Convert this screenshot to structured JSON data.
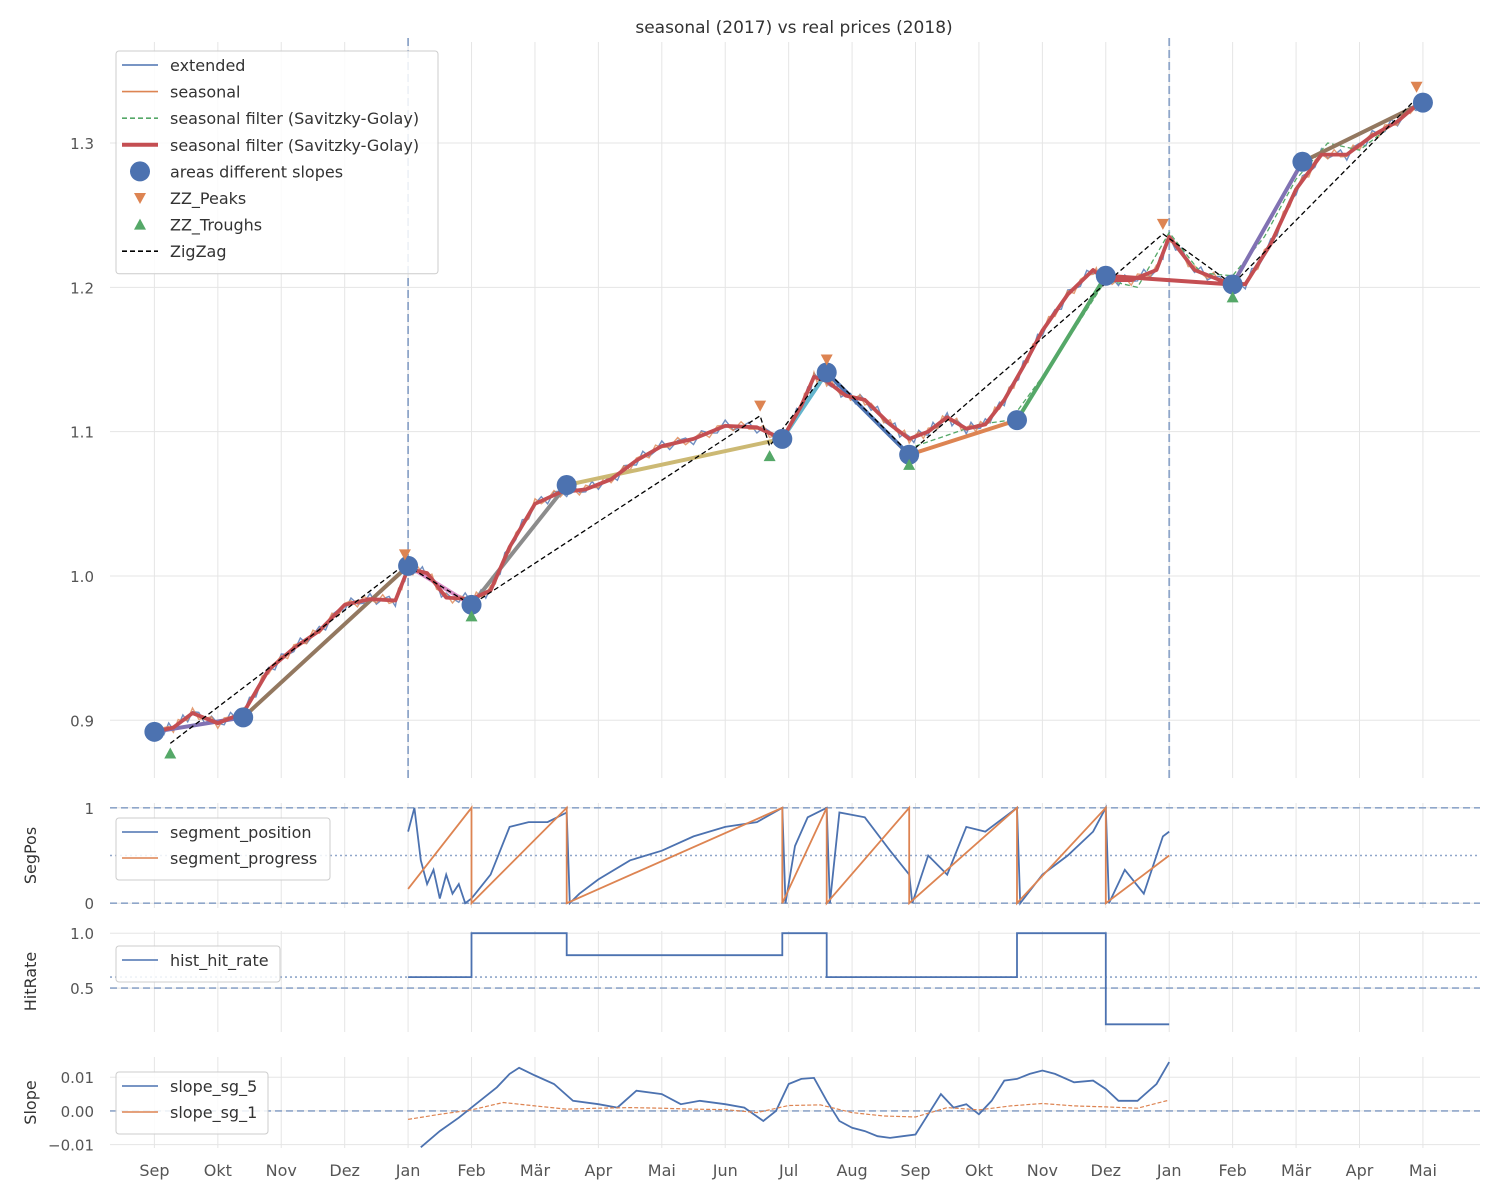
{
  "chart_data": [
    {
      "id": "main",
      "type": "line",
      "title": "seasonal (2017) vs real prices (2018)",
      "xlabel": "",
      "ylabel": "",
      "ylim": [
        0.86,
        1.37
      ],
      "yticks": [
        0.9,
        1.0,
        1.1,
        1.2,
        1.3
      ],
      "ytick_labels": [
        "0.9",
        "1.0",
        "1.1",
        "1.2",
        "1.3"
      ],
      "x_axis": {
        "unit": "months since 2017-09-01",
        "range": [
          -0.7,
          20.9
        ],
        "ticks": [
          0,
          1,
          2,
          3,
          4,
          5,
          6,
          7,
          8,
          9,
          10,
          11,
          12,
          13,
          14,
          15,
          16,
          17,
          18,
          19,
          20
        ],
        "tick_labels": [
          "Sep",
          "Okt",
          "Nov",
          "Dez",
          "Jan",
          "Feb",
          "Mär",
          "Apr",
          "Mai",
          "Jun",
          "Jul",
          "Aug",
          "Sep",
          "Okt",
          "Nov",
          "Dez",
          "Jan",
          "Feb",
          "Mär",
          "Apr",
          "Mai"
        ]
      },
      "vlines": [
        4.0,
        16.0
      ],
      "legend": {
        "position": "top-left",
        "entries": [
          {
            "label": "extended",
            "style": "line",
            "color": "#4c72b0"
          },
          {
            "label": "seasonal",
            "style": "line",
            "color": "#dd8452"
          },
          {
            "label": "seasonal filter (Savitzky-Golay)",
            "style": "dashed",
            "color": "#55a868"
          },
          {
            "label": "seasonal filter (Savitzky-Golay)",
            "style": "thick",
            "color": "#c44e52"
          },
          {
            "label": "areas different slopes",
            "style": "circle",
            "color": "#4c72b0"
          },
          {
            "label": "ZZ_Peaks",
            "style": "triangle-down",
            "color": "#dd8452"
          },
          {
            "label": "ZZ_Troughs",
            "style": "triangle-up",
            "color": "#55a868"
          },
          {
            "label": "ZigZag",
            "style": "dashed",
            "color": "#000000"
          }
        ]
      },
      "series": [
        {
          "name": "seasonal filter (Savitzky-Golay)",
          "color": "#c44e52",
          "x": [
            0.0,
            0.3,
            0.6,
            1.0,
            1.4,
            1.8,
            2.2,
            2.6,
            3.0,
            3.4,
            3.8,
            4.0,
            4.3,
            4.6,
            5.0,
            5.3,
            5.6,
            6.0,
            6.4,
            6.8,
            7.2,
            7.6,
            8.0,
            8.5,
            9.0,
            9.5,
            9.9,
            10.2,
            10.4,
            10.6,
            10.9,
            11.2,
            11.6,
            11.9,
            12.2,
            12.5,
            12.8,
            13.1,
            13.4,
            13.7,
            14.0,
            14.4,
            14.8,
            15.0,
            15.4,
            15.8,
            16.0,
            16.4,
            16.8,
            17.2,
            17.6,
            18.0,
            18.4,
            18.8,
            19.2,
            19.6,
            20.0
          ],
          "y": [
            0.892,
            0.895,
            0.905,
            0.898,
            0.905,
            0.935,
            0.95,
            0.962,
            0.98,
            0.984,
            0.983,
            1.005,
            1.002,
            0.985,
            0.984,
            0.99,
            1.02,
            1.05,
            1.058,
            1.06,
            1.067,
            1.08,
            1.09,
            1.095,
            1.104,
            1.103,
            1.095,
            1.118,
            1.138,
            1.135,
            1.125,
            1.122,
            1.105,
            1.095,
            1.1,
            1.11,
            1.102,
            1.105,
            1.122,
            1.145,
            1.17,
            1.195,
            1.212,
            1.205,
            1.205,
            1.212,
            1.235,
            1.212,
            1.205,
            1.202,
            1.23,
            1.268,
            1.292,
            1.292,
            1.305,
            1.315,
            1.33
          ]
        },
        {
          "name": "seasonal",
          "color": "#dd8452",
          "x": [
            12.0,
            13.0,
            13.5,
            14.2,
            15.0,
            15.5,
            16.0,
            16.5,
            17.0,
            17.5,
            18.0,
            18.5,
            19.0,
            19.5,
            20.0
          ],
          "y": [
            1.09,
            1.105,
            1.108,
            1.15,
            1.205,
            1.2,
            1.238,
            1.21,
            1.208,
            1.235,
            1.275,
            1.3,
            1.295,
            1.312,
            1.328
          ]
        }
      ],
      "slope_segments": [
        {
          "x": [
            0.0,
            1.4
          ],
          "y": [
            0.892,
            0.902
          ],
          "color": "#8172b3"
        },
        {
          "x": [
            1.4,
            4.0
          ],
          "y": [
            0.902,
            1.007
          ],
          "color": "#937860"
        },
        {
          "x": [
            4.0,
            5.0
          ],
          "y": [
            1.007,
            0.98
          ],
          "color": "#da8bc3"
        },
        {
          "x": [
            5.0,
            6.5
          ],
          "y": [
            0.98,
            1.063
          ],
          "color": "#8c8c8c"
        },
        {
          "x": [
            6.5,
            9.9
          ],
          "y": [
            1.063,
            1.095
          ],
          "color": "#ccb974"
        },
        {
          "x": [
            9.9,
            10.6
          ],
          "y": [
            1.095,
            1.141
          ],
          "color": "#64b5cd"
        },
        {
          "x": [
            10.6,
            11.9
          ],
          "y": [
            1.141,
            1.084
          ],
          "color": "#4c72b0"
        },
        {
          "x": [
            11.9,
            13.6
          ],
          "y": [
            1.084,
            1.108
          ],
          "color": "#dd8452"
        },
        {
          "x": [
            13.6,
            15.0
          ],
          "y": [
            1.108,
            1.208
          ],
          "color": "#55a868"
        },
        {
          "x": [
            15.0,
            17.0
          ],
          "y": [
            1.208,
            1.202
          ],
          "color": "#c44e52"
        },
        {
          "x": [
            17.0,
            18.1
          ],
          "y": [
            1.202,
            1.287
          ],
          "color": "#8172b3"
        },
        {
          "x": [
            18.1,
            20.0
          ],
          "y": [
            1.287,
            1.328
          ],
          "color": "#937860"
        }
      ],
      "areas_different_slopes": {
        "x": [
          0.0,
          1.4,
          4.0,
          5.0,
          6.5,
          9.9,
          10.6,
          11.9,
          13.6,
          15.0,
          17.0,
          18.1,
          20.0
        ],
        "y": [
          0.892,
          0.902,
          1.007,
          0.98,
          1.063,
          1.095,
          1.141,
          1.084,
          1.108,
          1.208,
          1.202,
          1.287,
          1.328
        ]
      },
      "zz_peaks": {
        "x": [
          3.95,
          9.55,
          10.6,
          15.9,
          19.9
        ],
        "y": [
          1.015,
          1.118,
          1.15,
          1.244,
          1.339
        ]
      },
      "zz_troughs": {
        "x": [
          0.25,
          5.0,
          9.7,
          11.9,
          17.0
        ],
        "y": [
          0.877,
          0.972,
          1.083,
          1.077,
          1.193
        ]
      },
      "zigzag": {
        "x": [
          0.25,
          3.95,
          5.0,
          9.55,
          9.7,
          10.6,
          11.9,
          15.9,
          17.0,
          19.9
        ],
        "y": [
          0.884,
          1.008,
          0.98,
          1.111,
          1.09,
          1.142,
          1.085,
          1.237,
          1.202,
          1.331
        ]
      }
    },
    {
      "id": "segpos",
      "type": "line",
      "ylabel": "SegPos",
      "ylim": [
        -0.05,
        1.05
      ],
      "yticks": [
        0,
        1
      ],
      "ytick_labels": [
        "0",
        "1"
      ],
      "hlines_dashed": [
        0,
        1
      ],
      "hlines_dotted": [
        0.5
      ],
      "legend": {
        "position": "top-left",
        "entries": [
          {
            "label": "segment_position",
            "color": "#4c72b0"
          },
          {
            "label": "segment_progress",
            "color": "#dd8452"
          }
        ]
      },
      "series": [
        {
          "name": "segment_position",
          "color": "#4c72b0",
          "x": [
            4.0,
            4.1,
            4.2,
            4.3,
            4.4,
            4.5,
            4.6,
            4.7,
            4.8,
            4.9,
            5.0,
            5.3,
            5.6,
            5.9,
            6.2,
            6.5,
            6.55,
            6.7,
            7.0,
            7.5,
            8.0,
            8.5,
            9.0,
            9.5,
            9.9,
            9.95,
            10.1,
            10.3,
            10.6,
            10.65,
            10.8,
            11.2,
            11.6,
            11.9,
            11.95,
            12.2,
            12.5,
            12.8,
            13.1,
            13.4,
            13.6,
            13.65,
            14.0,
            14.4,
            14.8,
            15.0,
            15.05,
            15.3,
            15.6,
            15.9,
            16.0
          ],
          "y": [
            0.75,
            1.0,
            0.45,
            0.2,
            0.35,
            0.05,
            0.3,
            0.1,
            0.2,
            0.0,
            0.05,
            0.3,
            0.8,
            0.85,
            0.85,
            0.95,
            0.0,
            0.1,
            0.25,
            0.45,
            0.55,
            0.7,
            0.8,
            0.85,
            1.0,
            0.0,
            0.6,
            0.9,
            1.0,
            0.0,
            0.95,
            0.9,
            0.55,
            0.3,
            0.0,
            0.5,
            0.3,
            0.8,
            0.75,
            0.9,
            1.0,
            0.0,
            0.3,
            0.5,
            0.75,
            1.0,
            0.0,
            0.35,
            0.1,
            0.7,
            0.75
          ]
        },
        {
          "name": "segment_progress",
          "color": "#dd8452",
          "x": [
            4.0,
            5.0,
            5.0,
            6.5,
            6.5,
            9.9,
            9.9,
            10.6,
            10.6,
            11.9,
            11.9,
            13.6,
            13.6,
            15.0,
            15.0,
            16.0
          ],
          "y": [
            0.15,
            1.0,
            0.0,
            1.0,
            0.0,
            1.0,
            0.0,
            1.0,
            0.0,
            1.0,
            0.0,
            1.0,
            0.0,
            1.0,
            0.0,
            0.5
          ]
        }
      ]
    },
    {
      "id": "hitrate",
      "type": "line",
      "ylabel": "HitRate",
      "ylim": [
        0.1,
        1.02
      ],
      "yticks": [
        0.5,
        1.0
      ],
      "ytick_labels": [
        "0.5",
        "1.0"
      ],
      "hlines_dashed": [
        0.5
      ],
      "hlines_dotted": [
        0.6
      ],
      "legend": {
        "position": "top-left",
        "entries": [
          {
            "label": "hist_hit_rate",
            "color": "#4c72b0"
          }
        ]
      },
      "series": [
        {
          "name": "hist_hit_rate",
          "color": "#4c72b0",
          "x": [
            4.0,
            5.0,
            5.0,
            6.5,
            6.5,
            9.9,
            9.9,
            10.6,
            10.6,
            12.0,
            13.6,
            13.6,
            15.0,
            15.0,
            16.0
          ],
          "y": [
            0.6,
            0.6,
            1.0,
            1.0,
            0.8,
            0.8,
            1.0,
            1.0,
            0.6,
            0.6,
            0.6,
            1.0,
            1.0,
            0.17,
            0.17
          ]
        }
      ]
    },
    {
      "id": "slope",
      "type": "line",
      "ylabel": "Slope",
      "ylim": [
        -0.011,
        0.016
      ],
      "yticks": [
        -0.01,
        0.0,
        0.01
      ],
      "ytick_labels": [
        "−0.01",
        "0.00",
        "0.01"
      ],
      "hlines_dashed": [
        0.0
      ],
      "legend": {
        "position": "top-left",
        "entries": [
          {
            "label": "slope_sg_5",
            "color": "#4c72b0"
          },
          {
            "label": "slope_sg_1",
            "color": "#dd8452"
          }
        ]
      },
      "series": [
        {
          "name": "slope_sg_5",
          "color": "#4c72b0",
          "x": [
            4.2,
            4.5,
            4.8,
            5.0,
            5.2,
            5.4,
            5.6,
            5.75,
            6.0,
            6.3,
            6.6,
            7.0,
            7.3,
            7.6,
            8.0,
            8.3,
            8.6,
            9.0,
            9.3,
            9.6,
            9.8,
            10.0,
            10.2,
            10.4,
            10.6,
            10.8,
            11.0,
            11.2,
            11.4,
            11.6,
            11.8,
            12.0,
            12.2,
            12.4,
            12.6,
            12.8,
            13.0,
            13.2,
            13.4,
            13.6,
            13.8,
            14.0,
            14.2,
            14.5,
            14.8,
            15.0,
            15.2,
            15.5,
            15.8,
            16.0
          ],
          "y": [
            -0.0108,
            -0.006,
            -0.002,
            0.001,
            0.004,
            0.007,
            0.011,
            0.0128,
            0.0105,
            0.008,
            0.003,
            0.002,
            0.001,
            0.006,
            0.005,
            0.002,
            0.003,
            0.002,
            0.001,
            -0.003,
            0.0,
            0.008,
            0.0095,
            0.0098,
            0.003,
            -0.003,
            -0.005,
            -0.006,
            -0.0075,
            -0.008,
            -0.0075,
            -0.007,
            -0.001,
            0.005,
            0.001,
            0.002,
            -0.001,
            0.003,
            0.009,
            0.0095,
            0.011,
            0.012,
            0.011,
            0.0085,
            0.009,
            0.0065,
            0.003,
            0.003,
            0.008,
            0.0145
          ]
        },
        {
          "name": "slope_sg_1",
          "color": "#dd8452",
          "x": [
            4.0,
            4.5,
            5.0,
            5.5,
            6.0,
            6.5,
            7.0,
            7.5,
            8.0,
            8.5,
            9.0,
            9.5,
            10.0,
            10.5,
            11.0,
            11.5,
            12.0,
            12.5,
            13.0,
            13.5,
            14.0,
            14.5,
            15.0,
            15.5,
            16.0
          ],
          "y": [
            -0.0025,
            -0.001,
            0.0003,
            0.0025,
            0.0015,
            0.0005,
            0.0008,
            0.001,
            0.0008,
            0.0005,
            0.0004,
            -0.0005,
            0.0016,
            0.0018,
            -0.0005,
            -0.0015,
            -0.0018,
            0.001,
            0.0003,
            0.0015,
            0.0022,
            0.0015,
            0.0012,
            0.0008,
            0.0032
          ]
        }
      ]
    }
  ]
}
